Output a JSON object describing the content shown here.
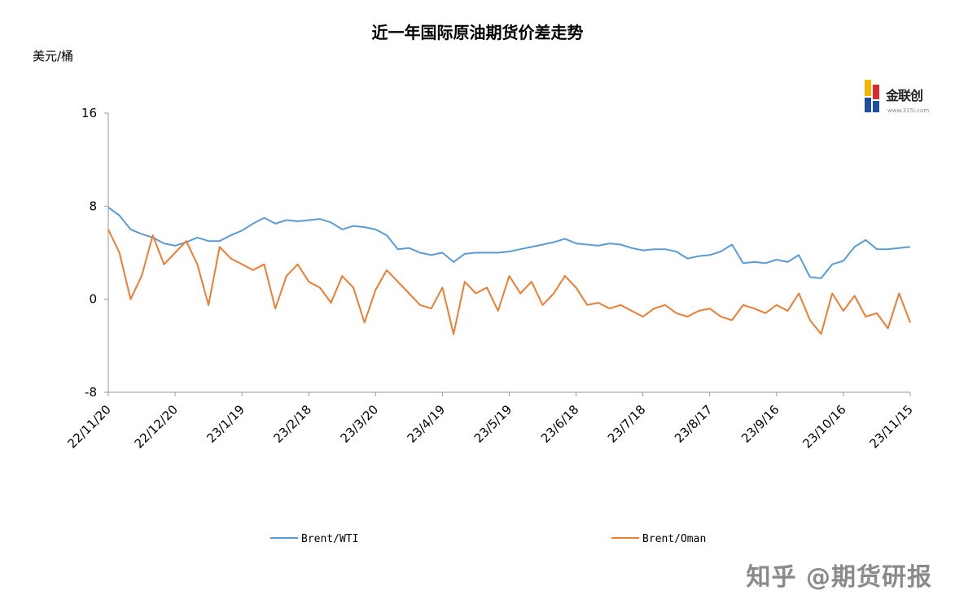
{
  "chart_data": {
    "type": "line",
    "title": "近一年国际原油期货价差走势",
    "ylabel": "美元/桶",
    "ylim": [
      -8,
      16
    ],
    "yticks": [
      -8,
      0,
      8,
      16
    ],
    "x_start": "22/11/20",
    "x_end": "23/11/15",
    "xticks": [
      "22/11/20",
      "22/12/20",
      "23/1/19",
      "23/2/18",
      "23/3/20",
      "23/4/19",
      "23/5/19",
      "23/6/18",
      "23/7/18",
      "23/8/17",
      "23/9/16",
      "23/10/16",
      "23/11/15"
    ],
    "legend_position": "bottom",
    "grid": false,
    "series": [
      {
        "name": "Brent/WTI",
        "color": "#5b9bd5",
        "x": [
          "22/11/20",
          "22/11/25",
          "22/11/30",
          "22/12/5",
          "22/12/10",
          "22/12/15",
          "22/12/20",
          "22/12/25",
          "22/12/30",
          "23/1/4",
          "23/1/9",
          "23/1/14",
          "23/1/19",
          "23/1/24",
          "23/1/29",
          "23/2/3",
          "23/2/8",
          "23/2/13",
          "23/2/18",
          "23/2/23",
          "23/2/28",
          "23/3/5",
          "23/3/10",
          "23/3/15",
          "23/3/20",
          "23/3/25",
          "23/3/30",
          "23/4/4",
          "23/4/9",
          "23/4/14",
          "23/4/19",
          "23/4/24",
          "23/4/29",
          "23/5/4",
          "23/5/9",
          "23/5/14",
          "23/5/19",
          "23/5/24",
          "23/5/29",
          "23/6/3",
          "23/6/8",
          "23/6/13",
          "23/6/18",
          "23/6/23",
          "23/6/28",
          "23/7/3",
          "23/7/8",
          "23/7/13",
          "23/7/18",
          "23/7/23",
          "23/7/28",
          "23/8/2",
          "23/8/7",
          "23/8/12",
          "23/8/17",
          "23/8/22",
          "23/8/27",
          "23/9/1",
          "23/9/6",
          "23/9/11",
          "23/9/16",
          "23/9/21",
          "23/9/26",
          "23/10/1",
          "23/10/6",
          "23/10/11",
          "23/10/16",
          "23/10/21",
          "23/10/26",
          "23/10/31",
          "23/11/5",
          "23/11/10",
          "23/11/15"
        ],
        "values": [
          7.9,
          7.2,
          6.0,
          5.6,
          5.3,
          4.8,
          4.6,
          4.9,
          5.3,
          5.0,
          5.0,
          5.5,
          5.9,
          6.5,
          7.0,
          6.5,
          6.8,
          6.7,
          6.8,
          6.9,
          6.6,
          6.0,
          6.3,
          6.2,
          6.0,
          5.5,
          4.3,
          4.4,
          4.0,
          3.8,
          4.0,
          3.2,
          3.9,
          4.0,
          4.0,
          4.0,
          4.1,
          4.3,
          4.5,
          4.7,
          4.9,
          5.2,
          4.8,
          4.7,
          4.6,
          4.8,
          4.7,
          4.4,
          4.2,
          4.3,
          4.3,
          4.1,
          3.5,
          3.7,
          3.8,
          4.1,
          4.7,
          3.1,
          3.2,
          3.1,
          3.4,
          3.2,
          3.8,
          1.9,
          1.8,
          3.0,
          3.3,
          4.5,
          5.1,
          4.3,
          4.3,
          4.4,
          4.5
        ]
      },
      {
        "name": "Brent/Oman",
        "color": "#ed7d31",
        "x": [
          "22/11/20",
          "22/11/25",
          "22/11/30",
          "22/12/5",
          "22/12/10",
          "22/12/15",
          "22/12/20",
          "22/12/25",
          "22/12/30",
          "23/1/4",
          "23/1/9",
          "23/1/14",
          "23/1/19",
          "23/1/24",
          "23/1/29",
          "23/2/3",
          "23/2/8",
          "23/2/13",
          "23/2/18",
          "23/2/23",
          "23/2/28",
          "23/3/5",
          "23/3/10",
          "23/3/15",
          "23/3/20",
          "23/3/25",
          "23/3/30",
          "23/4/4",
          "23/4/9",
          "23/4/14",
          "23/4/19",
          "23/4/24",
          "23/4/29",
          "23/5/4",
          "23/5/9",
          "23/5/14",
          "23/5/19",
          "23/5/24",
          "23/5/29",
          "23/6/3",
          "23/6/8",
          "23/6/13",
          "23/6/18",
          "23/6/23",
          "23/6/28",
          "23/7/3",
          "23/7/8",
          "23/7/13",
          "23/7/18",
          "23/7/23",
          "23/7/28",
          "23/8/2",
          "23/8/7",
          "23/8/12",
          "23/8/17",
          "23/8/22",
          "23/8/27",
          "23/9/1",
          "23/9/6",
          "23/9/11",
          "23/9/16",
          "23/9/21",
          "23/9/26",
          "23/10/1",
          "23/10/6",
          "23/10/11",
          "23/10/16",
          "23/10/21",
          "23/10/26",
          "23/10/31",
          "23/11/5",
          "23/11/10",
          "23/11/15"
        ],
        "values": [
          6.0,
          4.0,
          0.0,
          2.0,
          5.5,
          3.0,
          4.0,
          5.0,
          3.0,
          -0.5,
          4.5,
          3.5,
          3.0,
          2.5,
          3.0,
          -0.8,
          2.0,
          3.0,
          1.5,
          1.0,
          -0.3,
          2.0,
          1.0,
          -2.0,
          0.8,
          2.5,
          1.5,
          0.5,
          -0.5,
          -0.8,
          1.0,
          -3.0,
          1.5,
          0.5,
          1.0,
          -1.0,
          2.0,
          0.5,
          1.5,
          -0.5,
          0.5,
          2.0,
          1.0,
          -0.5,
          -0.3,
          -0.8,
          -0.5,
          -1.0,
          -1.5,
          -0.8,
          -0.5,
          -1.2,
          -1.5,
          -1.0,
          -0.8,
          -1.5,
          -1.8,
          -0.5,
          -0.8,
          -1.2,
          -0.5,
          -1.0,
          0.5,
          -1.8,
          -3.0,
          0.5,
          -1.0,
          0.3,
          -1.5,
          -1.2,
          -2.5,
          0.5,
          -2.0
        ]
      }
    ]
  },
  "logo": {
    "text": "金联创",
    "sub": "www.315i.com"
  },
  "watermark": "知乎 @期货研报"
}
